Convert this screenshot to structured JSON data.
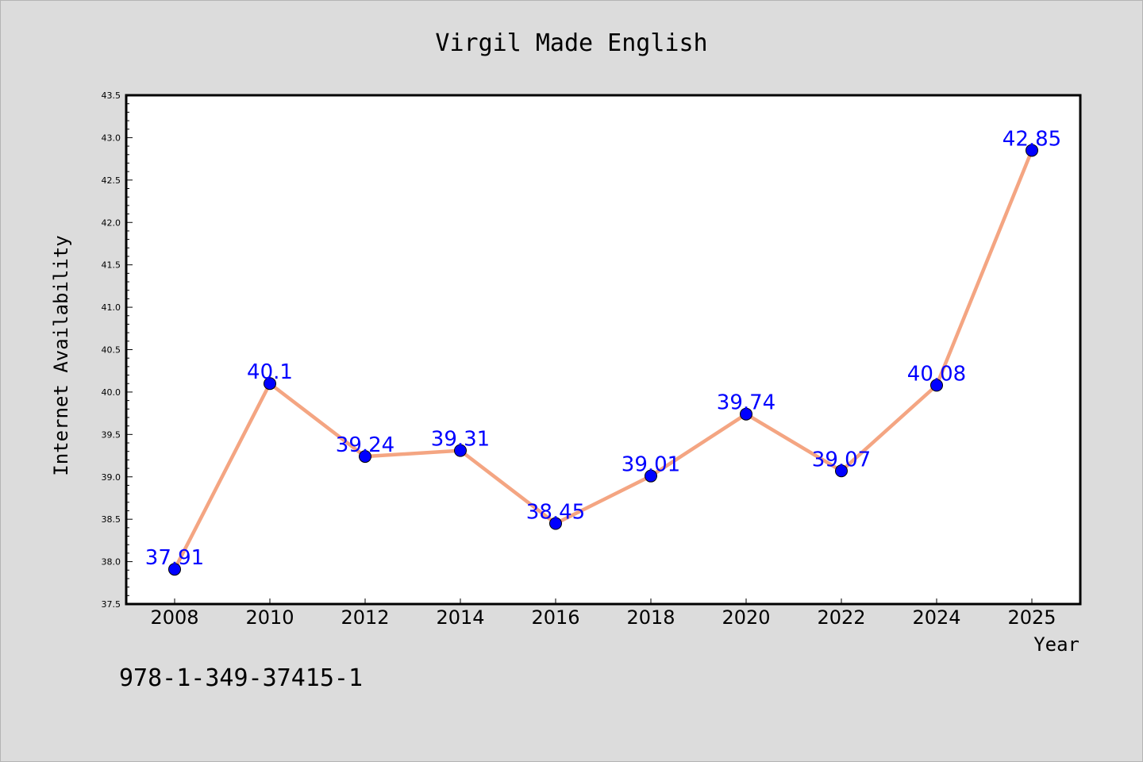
{
  "chart_data": {
    "type": "line",
    "title": "Virgil Made English",
    "xlabel": "Year",
    "ylabel": "Internet Availability",
    "categories": [
      "2008",
      "2010",
      "2012",
      "2014",
      "2016",
      "2018",
      "2020",
      "2022",
      "2024",
      "2025"
    ],
    "series": [
      {
        "values": [
          37.91,
          40.1,
          39.24,
          39.31,
          38.45,
          39.01,
          39.74,
          39.07,
          40.08,
          42.85
        ],
        "labels": [
          "37.91",
          "40.1",
          "39.24",
          "39.31",
          "38.45",
          "39.01",
          "39.74",
          "39.07",
          "40.08",
          "42.85"
        ]
      }
    ],
    "ylim": [
      37.5,
      43.5
    ],
    "yticks": [
      "37.5",
      "38.0",
      "38.5",
      "39.0",
      "39.5",
      "40.0",
      "40.5",
      "41.0",
      "41.5",
      "42.0",
      "42.5",
      "43.0",
      "43.5"
    ],
    "grid": false,
    "line_color": "#f4a582",
    "marker_color": "#0000ff",
    "label_color": "#0000ff",
    "background": "#dcdcdc",
    "plot_background": "#ffffff"
  },
  "footer": {
    "isbn": "978-1-349-37415-1"
  }
}
